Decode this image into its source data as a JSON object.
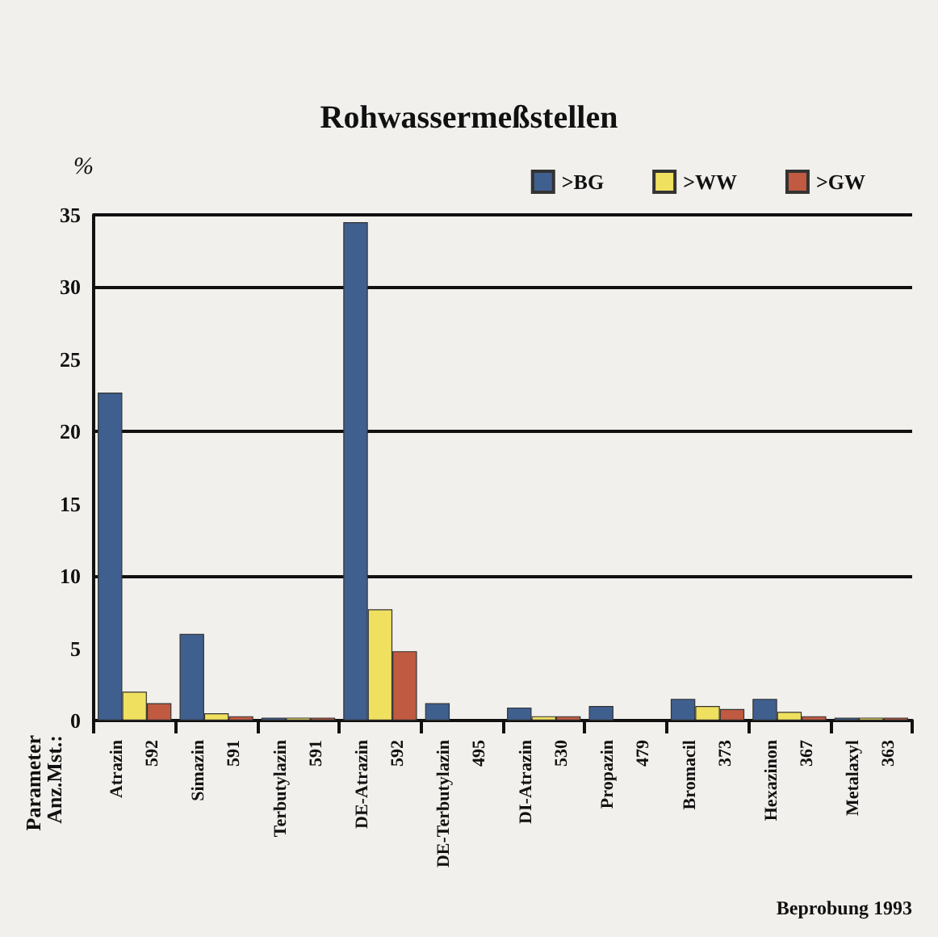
{
  "chart_data": {
    "type": "bar",
    "title": "Rohwassermeßstellen",
    "ylabel": "%",
    "categories": [
      "Atrazin\n592",
      "Simazin\n591",
      "Terbutylazin\n591",
      "DE-Atrazin\n592",
      "DE-Terbutylazin\n495",
      "DI-Atrazin\n530",
      "Propazin\n479",
      "Bromacil\n373",
      "Hexazinon\n367",
      "Metalaxyl\n363"
    ],
    "series": [
      {
        "name": ">BG",
        "color": "#3f5f8f",
        "values": [
          22.7,
          6.0,
          0.2,
          34.5,
          1.2,
          0.9,
          1.0,
          1.5,
          1.5,
          0.2
        ]
      },
      {
        "name": ">WW",
        "color": "#f0e060",
        "values": [
          2.0,
          0.5,
          0.2,
          7.7,
          null,
          0.3,
          null,
          1.0,
          0.6,
          0.2
        ]
      },
      {
        "name": ">GW",
        "color": "#c05a40",
        "values": [
          1.2,
          0.3,
          0.2,
          4.8,
          null,
          0.3,
          null,
          0.8,
          0.3,
          0.2
        ]
      }
    ],
    "ylim": [
      0,
      35
    ],
    "yticks": [
      0,
      5,
      10,
      15,
      20,
      25,
      30,
      35
    ],
    "grid": "y",
    "legend": "top right",
    "annotations": [
      "Parameter\nAnz.Mst.:",
      "Beprobung 1993"
    ]
  }
}
